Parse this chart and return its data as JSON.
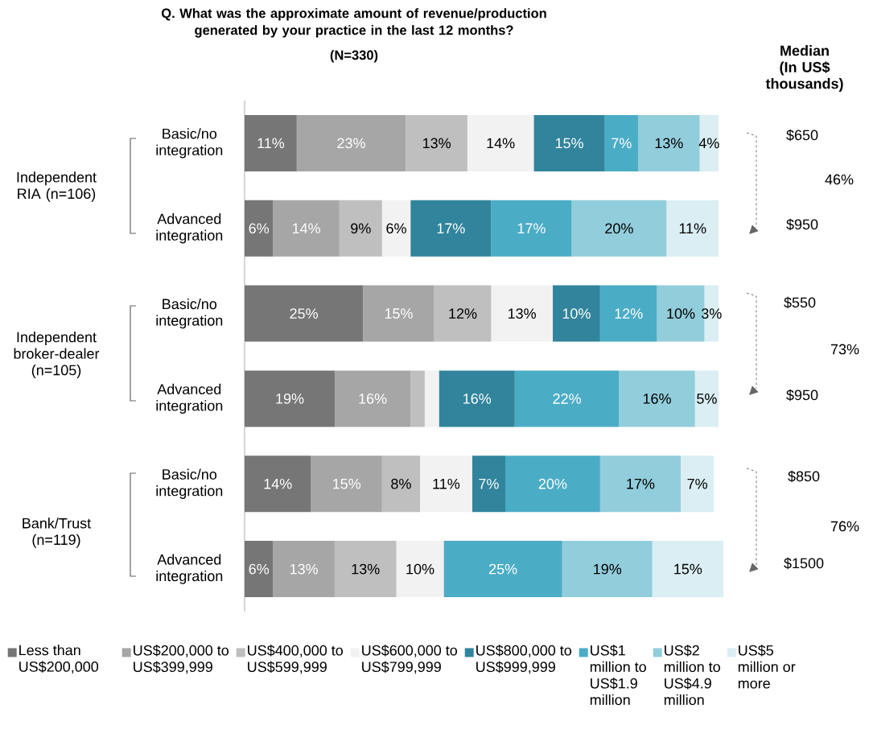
{
  "chart_data": {
    "type": "bar",
    "orientation": "horizontal",
    "stacked": true,
    "title": "Q. What was the approximate amount of revenue/production generated by your practice in the last 12 months?",
    "subtitle": "(N=330)",
    "categories": [
      "Basic/no integration",
      "Advanced integration",
      "Basic/no integration",
      "Advanced integration",
      "Basic/no integration",
      "Advanced integration"
    ],
    "series": [
      {
        "name": "Less than US$200,000",
        "color": "#767676",
        "values": [
          11,
          6,
          25,
          19,
          14,
          6
        ],
        "value_labels": [
          "11%",
          "6%",
          "25%",
          "19%",
          "14%",
          "6%"
        ]
      },
      {
        "name": "US$200,000 to US$399,999",
        "color": "#a6a6a6",
        "values": [
          23,
          14,
          15,
          16,
          15,
          13
        ],
        "value_labels": [
          "23%",
          "14%",
          "15%",
          "16%",
          "15%",
          "13%"
        ]
      },
      {
        "name": "US$400,000 to US$599,999",
        "color": "#bfbfbf",
        "values": [
          13,
          9,
          12,
          3,
          8,
          13
        ],
        "value_labels": [
          "13%",
          "9%",
          "12%",
          null,
          "8%",
          "13%"
        ]
      },
      {
        "name": "US$600,000 to US$799,999",
        "color": "#f2f2f2",
        "values": [
          14,
          6,
          13,
          3,
          11,
          10
        ],
        "value_labels": [
          "14%",
          "6%",
          "13%",
          null,
          "11%",
          "10%"
        ]
      },
      {
        "name": "US$800,000 to US$999,999",
        "color": "#31849b",
        "values": [
          15,
          17,
          10,
          16,
          7,
          0
        ],
        "value_labels": [
          "15%",
          "17%",
          "10%",
          "16%",
          "7%",
          null
        ]
      },
      {
        "name": "US$1 million to US$1.9 million",
        "color": "#4bacc6",
        "values": [
          7,
          17,
          12,
          22,
          20,
          25
        ],
        "value_labels": [
          "7%",
          "17%",
          "12%",
          "22%",
          "20%",
          "25%"
        ]
      },
      {
        "name": "US$2 million to US$4.9 million",
        "color": "#92cddc",
        "values": [
          13,
          20,
          10,
          16,
          17,
          19
        ],
        "value_labels": [
          "13%",
          "20%",
          "10%",
          "16%",
          "17%",
          "19%"
        ]
      },
      {
        "name": "US$5 million or more",
        "color": "#daeef3",
        "values": [
          4,
          11,
          3,
          5,
          7,
          15
        ],
        "value_labels": [
          "4%",
          "11%",
          "3%",
          "5%",
          "7%",
          "15%"
        ]
      }
    ],
    "legend": "bottom",
    "annotations": [
      "Independent RIA (n=106)",
      "Independent broker-dealer (n=105)",
      "Bank/Trust (n=119)",
      "Median (In US$ thousands)",
      "$650",
      "$950",
      "$550",
      "$950",
      "$850",
      "$1500",
      "46%",
      "73%",
      "76%"
    ]
  }
}
